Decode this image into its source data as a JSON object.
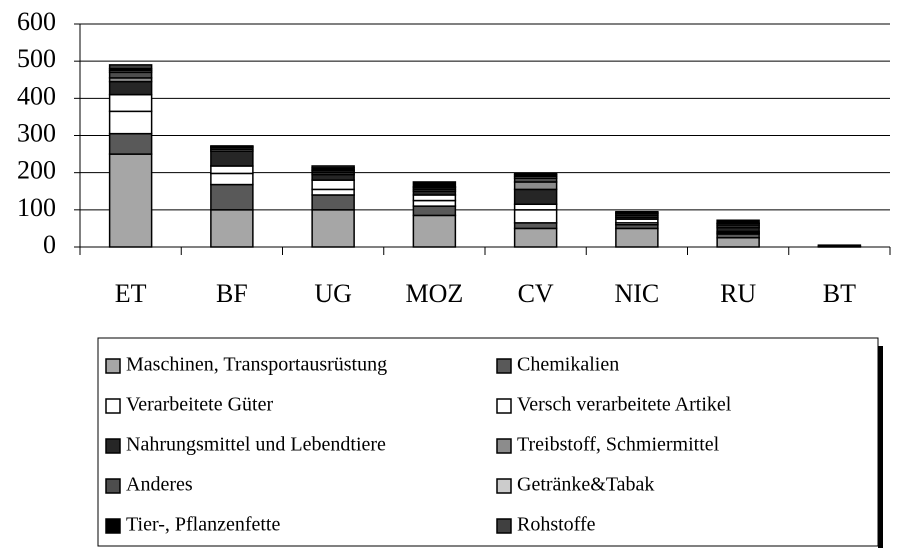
{
  "chart_data": {
    "type": "stacked_bar",
    "categories": [
      "ET",
      "BF",
      "UG",
      "MOZ",
      "CV",
      "NIC",
      "RU",
      "BT"
    ],
    "series": [
      {
        "name": "Maschinen, Transportausrüstung",
        "color": "#a6a6a6",
        "values": [
          250,
          100,
          100,
          85,
          50,
          50,
          25,
          1
        ]
      },
      {
        "name": "Chemikalien",
        "color": "#595959",
        "values": [
          55,
          68,
          40,
          25,
          15,
          10,
          10,
          1
        ]
      },
      {
        "name": "Verarbeitete Güter",
        "color": "#ffffff",
        "values": [
          60,
          30,
          15,
          15,
          35,
          5,
          3,
          0
        ]
      },
      {
        "name": "Versch verarbeitete Artikel",
        "color": "#ffffff",
        "values": [
          45,
          20,
          25,
          15,
          15,
          10,
          4,
          0
        ]
      },
      {
        "name": "Nahrungsmittel und Lebendtiere",
        "color": "#262626",
        "values": [
          35,
          40,
          15,
          10,
          40,
          5,
          10,
          0
        ]
      },
      {
        "name": "Treibstoff, Schmiermittel",
        "color": "#8c8c8c",
        "values": [
          10,
          5,
          5,
          5,
          20,
          5,
          5,
          0
        ]
      },
      {
        "name": "Anderes",
        "color": "#4d4d4d",
        "values": [
          15,
          5,
          5,
          5,
          10,
          5,
          5,
          0
        ]
      },
      {
        "name": "Getränke&Tabak",
        "color": "#cccccc",
        "values": [
          5,
          2,
          3,
          2,
          5,
          2,
          2,
          0
        ]
      },
      {
        "name": "Tier-, Pflanzenfette",
        "color": "#000000",
        "values": [
          5,
          2,
          5,
          13,
          5,
          3,
          8,
          3
        ]
      },
      {
        "name": "Rohstoffe",
        "color": "#404040",
        "values": [
          10,
          0,
          5,
          0,
          3,
          0,
          0,
          0
        ]
      }
    ],
    "ylim": [
      0,
      600
    ],
    "yticks": [
      0,
      100,
      200,
      300,
      400,
      500,
      600
    ],
    "grid": true
  }
}
